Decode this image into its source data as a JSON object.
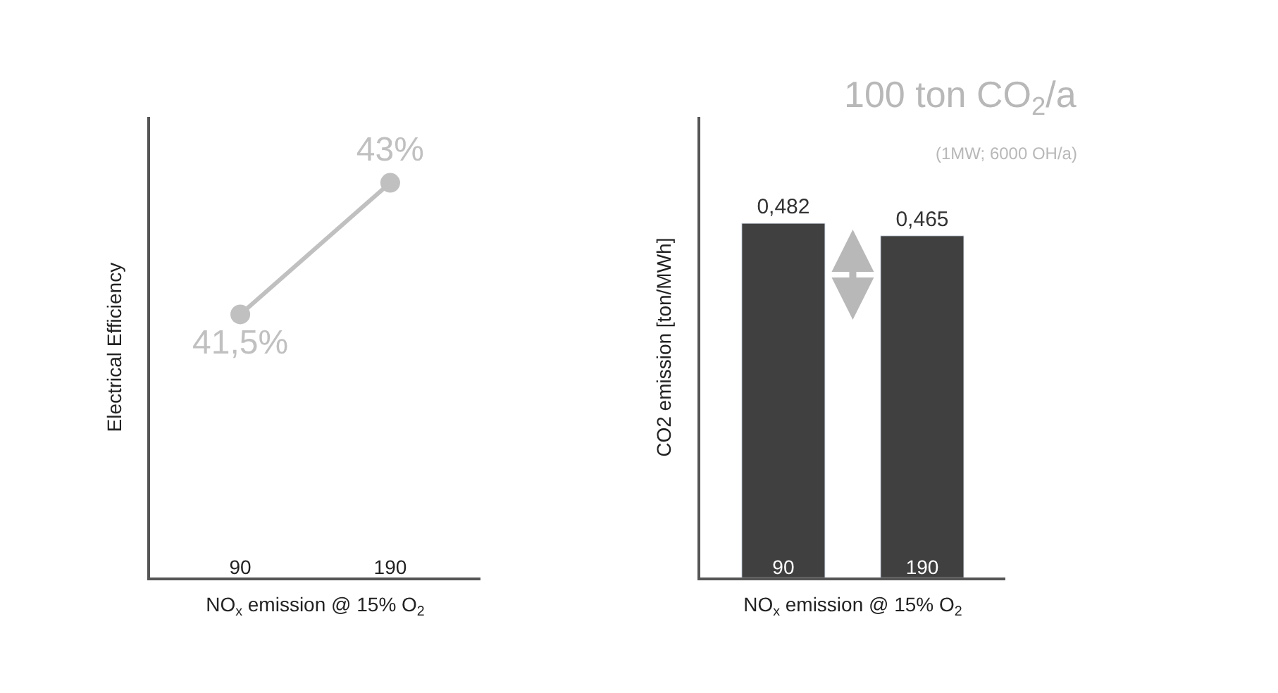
{
  "chart_data": [
    {
      "type": "line",
      "ylabel": "Electrical Efficiency",
      "xlabel": "NO$_{x}$ emission @ 15% O$_{2}$",
      "categories": [
        "90",
        "190"
      ],
      "values": [
        41.5,
        43
      ],
      "value_labels": [
        "41,5%",
        "43%"
      ],
      "color": "#c0c0c0",
      "marker": "circle",
      "tick_labels": "x"
    },
    {
      "type": "bar",
      "ylabel": "CO2 emission [ton/MWh]",
      "xlabel": "NO$_{x}$ emission @ 15% O$_{2}$",
      "categories": [
        "90",
        "190"
      ],
      "values": [
        0.482,
        0.465
      ],
      "value_labels": [
        "0,482",
        "0,465"
      ],
      "color": "#404040",
      "tick_labels": "x",
      "annotations": [
        "100 ton CO$_{2}$/a",
        "(1MW; 6000 OH/a)"
      ]
    }
  ]
}
